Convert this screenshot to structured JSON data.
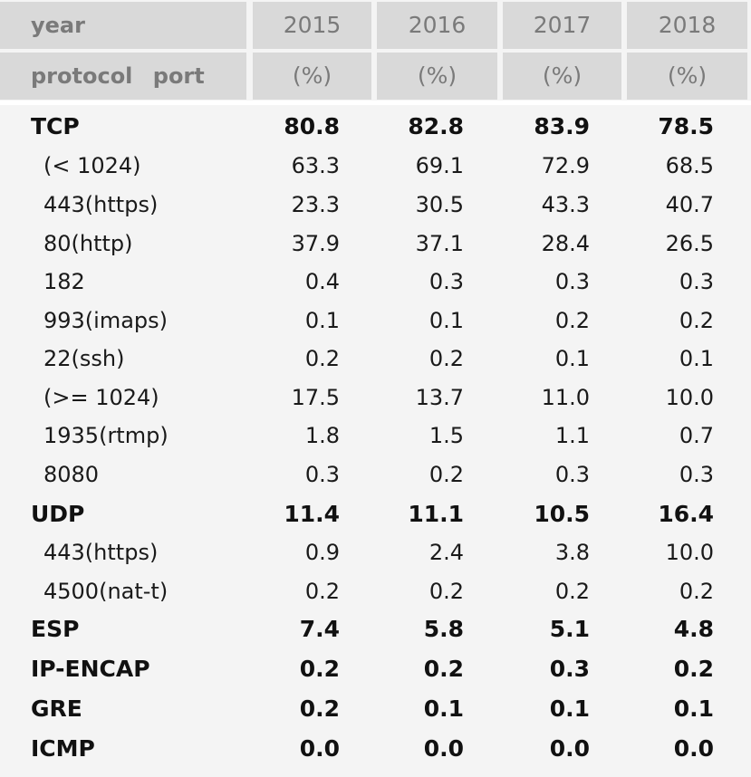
{
  "header": {
    "year_label": "year",
    "years": [
      "2015",
      "2016",
      "2017",
      "2018"
    ],
    "protocol_label": "protocol",
    "port_label": "port",
    "units": [
      "(%)",
      "(%)",
      "(%)",
      "(%)"
    ]
  },
  "rows": [
    {
      "label": "TCP",
      "values": [
        "80.8",
        "82.8",
        "83.9",
        "78.5"
      ]
    },
    {
      "label": "(< 1024)",
      "values": [
        "63.3",
        "69.1",
        "72.9",
        "68.5"
      ]
    },
    {
      "label": "443(https)",
      "values": [
        "23.3",
        "30.5",
        "43.3",
        "40.7"
      ]
    },
    {
      "label": "80(http)",
      "values": [
        "37.9",
        "37.1",
        "28.4",
        "26.5"
      ]
    },
    {
      "label": "182",
      "values": [
        "0.4",
        "0.3",
        "0.3",
        "0.3"
      ]
    },
    {
      "label": "993(imaps)",
      "values": [
        "0.1",
        "0.1",
        "0.2",
        "0.2"
      ]
    },
    {
      "label": "22(ssh)",
      "values": [
        "0.2",
        "0.2",
        "0.1",
        "0.1"
      ]
    },
    {
      "label": "(>= 1024)",
      "values": [
        "17.5",
        "13.7",
        "11.0",
        "10.0"
      ]
    },
    {
      "label": "1935(rtmp)",
      "values": [
        "1.8",
        "1.5",
        "1.1",
        "0.7"
      ]
    },
    {
      "label": "8080",
      "values": [
        "0.3",
        "0.2",
        "0.3",
        "0.3"
      ]
    },
    {
      "label": "UDP",
      "values": [
        "11.4",
        "11.1",
        "10.5",
        "16.4"
      ]
    },
    {
      "label": "443(https)",
      "values": [
        "0.9",
        "2.4",
        "3.8",
        "10.0"
      ]
    },
    {
      "label": "4500(nat-t)",
      "values": [
        "0.2",
        "0.2",
        "0.2",
        "0.2"
      ]
    },
    {
      "label": "ESP",
      "values": [
        "7.4",
        "5.8",
        "5.1",
        "4.8"
      ]
    },
    {
      "label": "IP-ENCAP",
      "values": [
        "0.2",
        "0.2",
        "0.3",
        "0.2"
      ]
    },
    {
      "label": "GRE",
      "values": [
        "0.2",
        "0.1",
        "0.1",
        "0.1"
      ]
    },
    {
      "label": "ICMP",
      "values": [
        "0.0",
        "0.0",
        "0.0",
        "0.0"
      ]
    }
  ]
}
